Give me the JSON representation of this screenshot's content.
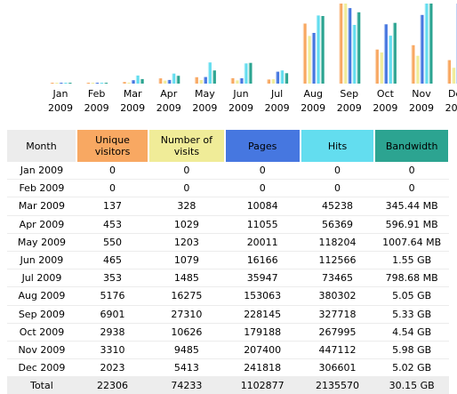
{
  "colors": {
    "unique": "#F8A862",
    "visits": "#F0EC98",
    "pages": "#4677E0",
    "hits": "#63DDEF",
    "bandwidth": "#2CA491",
    "header_month": "#ECECEC"
  },
  "chart_data": {
    "type": "bar",
    "categories": [
      [
        "Jan",
        "2009"
      ],
      [
        "Feb",
        "2009"
      ],
      [
        "Mar",
        "2009"
      ],
      [
        "Apr",
        "2009"
      ],
      [
        "May",
        "2009"
      ],
      [
        "Jun",
        "2009"
      ],
      [
        "Jul",
        "2009"
      ],
      [
        "Aug",
        "2009"
      ],
      [
        "Sep",
        "2009"
      ],
      [
        "Oct",
        "2009"
      ],
      [
        "Nov",
        "2009"
      ],
      [
        "Dec",
        "2009"
      ]
    ],
    "series": [
      {
        "name": "Unique visitors",
        "color": "#F8A862",
        "values": [
          0,
          0,
          137,
          453,
          550,
          465,
          353,
          5176,
          6901,
          2938,
          3310,
          2023
        ]
      },
      {
        "name": "Number of visits",
        "color": "#F0EC98",
        "values": [
          0,
          0,
          328,
          1029,
          1203,
          1079,
          1485,
          16275,
          27310,
          10626,
          9485,
          5413
        ]
      },
      {
        "name": "Pages",
        "color": "#4677E0",
        "values": [
          0,
          0,
          10084,
          11055,
          20011,
          16166,
          35947,
          153063,
          228145,
          179188,
          207400,
          241818
        ]
      },
      {
        "name": "Hits",
        "color": "#63DDEF",
        "values": [
          0,
          0,
          45238,
          56369,
          118204,
          112566,
          73465,
          380302,
          327718,
          267995,
          447112,
          306601
        ]
      },
      {
        "name": "Bandwidth",
        "color": "#2CA491",
        "values": [
          0,
          0,
          345.44,
          596.91,
          1007.64,
          1587.2,
          798.68,
          5171.2,
          5457.92,
          4648.96,
          6123.52,
          5140.48
        ],
        "unit": "MB"
      }
    ]
  },
  "table": {
    "headers": {
      "month": "Month",
      "unique": "Unique visitors",
      "visits": "Number of visits",
      "pages": "Pages",
      "hits": "Hits",
      "bandwidth": "Bandwidth"
    },
    "rows": [
      [
        "Jan 2009",
        "0",
        "0",
        "0",
        "0",
        "0"
      ],
      [
        "Feb 2009",
        "0",
        "0",
        "0",
        "0",
        "0"
      ],
      [
        "Mar 2009",
        "137",
        "328",
        "10084",
        "45238",
        "345.44 MB"
      ],
      [
        "Apr 2009",
        "453",
        "1029",
        "11055",
        "56369",
        "596.91 MB"
      ],
      [
        "May 2009",
        "550",
        "1203",
        "20011",
        "118204",
        "1007.64 MB"
      ],
      [
        "Jun 2009",
        "465",
        "1079",
        "16166",
        "112566",
        "1.55 GB"
      ],
      [
        "Jul 2009",
        "353",
        "1485",
        "35947",
        "73465",
        "798.68 MB"
      ],
      [
        "Aug 2009",
        "5176",
        "16275",
        "153063",
        "380302",
        "5.05 GB"
      ],
      [
        "Sep 2009",
        "6901",
        "27310",
        "228145",
        "327718",
        "5.33 GB"
      ],
      [
        "Oct 2009",
        "2938",
        "10626",
        "179188",
        "267995",
        "4.54 GB"
      ],
      [
        "Nov 2009",
        "3310",
        "9485",
        "207400",
        "447112",
        "5.98 GB"
      ],
      [
        "Dec 2009",
        "2023",
        "5413",
        "241818",
        "306601",
        "5.02 GB"
      ]
    ],
    "total": [
      "Total",
      "22306",
      "74233",
      "1102877",
      "2135570",
      "30.15 GB"
    ]
  }
}
